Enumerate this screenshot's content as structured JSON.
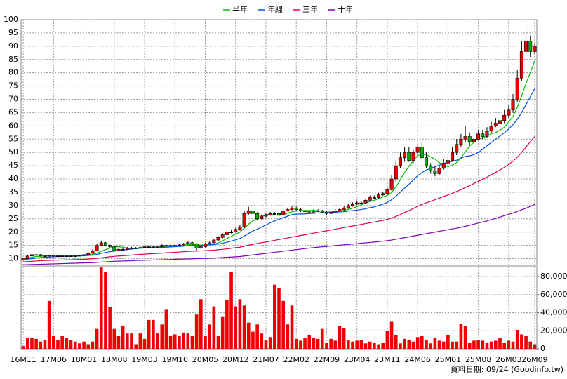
{
  "chart_data": {
    "type": "candlestick",
    "categories": [
      "16M11",
      null,
      null,
      null,
      null,
      null,
      null,
      "17M06",
      null,
      null,
      null,
      null,
      null,
      null,
      "18M01",
      null,
      null,
      null,
      null,
      null,
      null,
      "18M08",
      null,
      null,
      null,
      null,
      null,
      null,
      "19M03",
      null,
      null,
      null,
      null,
      null,
      null,
      "19M10",
      null,
      null,
      null,
      null,
      null,
      null,
      "20M05",
      null,
      null,
      null,
      null,
      null,
      null,
      "20M12",
      null,
      null,
      null,
      null,
      null,
      null,
      "21M07",
      null,
      null,
      null,
      null,
      null,
      null,
      "22M02",
      null,
      null,
      null,
      null,
      null,
      null,
      "22M09",
      null,
      null,
      null,
      null,
      null,
      null,
      "23M04",
      null,
      null,
      null,
      null,
      null,
      null,
      "23M11",
      null,
      null,
      null,
      null,
      null,
      null,
      "24M06",
      null,
      null,
      null,
      null,
      null,
      null,
      "25M01",
      null,
      null,
      null,
      null,
      null,
      null,
      "25M08",
      null,
      null,
      null,
      null,
      null,
      null,
      "26M03",
      null,
      null,
      null,
      null,
      null,
      "26M09"
    ],
    "open": [
      9.5,
      10,
      11,
      11.5,
      11.5,
      11,
      11,
      11.2,
      11,
      11,
      11,
      11,
      11,
      11,
      11.2,
      11.5,
      12,
      13,
      15,
      16,
      15,
      14.5,
      13,
      13.5,
      13.5,
      14,
      14,
      14,
      14.2,
      14.5,
      14.5,
      14.3,
      14.5,
      15,
      14.8,
      15,
      15,
      15.2,
      15.5,
      16,
      15.5,
      14,
      14.5,
      15.5,
      16,
      17,
      18,
      19,
      20,
      20,
      21,
      22,
      27,
      28,
      27,
      25,
      26,
      26.5,
      27,
      27,
      26.5,
      28,
      28.5,
      29,
      28.5,
      28,
      28,
      27.5,
      28,
      28,
      27.5,
      27,
      27.5,
      28,
      28.5,
      29,
      30,
      30.5,
      31,
      31,
      32,
      33,
      33,
      34,
      34.5,
      36,
      40,
      45,
      48,
      50,
      47,
      50,
      52,
      48,
      45,
      43,
      42,
      44,
      46,
      47,
      50,
      53,
      55,
      56,
      54,
      55,
      57,
      56,
      58,
      60,
      61,
      62,
      64,
      66,
      70,
      78,
      88,
      92,
      88
    ],
    "high": [
      10.3,
      11.4,
      11.8,
      11.8,
      11.7,
      11.3,
      11.5,
      11.4,
      11.3,
      11.3,
      11.3,
      11.3,
      11.3,
      11.5,
      11.8,
      12.4,
      13.5,
      15.5,
      16.8,
      16.2,
      15.3,
      14.8,
      13.9,
      14,
      14.4,
      14.4,
      14.4,
      14.6,
      14.8,
      14.9,
      14.8,
      14.8,
      15.4,
      15.3,
      15.3,
      15.4,
      15.5,
      15.9,
      16.5,
      16.4,
      15.8,
      14.9,
      15.9,
      16.4,
      17.5,
      18.5,
      19.6,
      20.6,
      20.7,
      21.6,
      22.8,
      28,
      29.5,
      28.8,
      27.5,
      26.6,
      27.2,
      27.6,
      27.6,
      27.4,
      28.7,
      29.2,
      30,
      29.6,
      29,
      28.6,
      28.5,
      28.6,
      28.6,
      28.4,
      27.9,
      28,
      28.6,
      29.2,
      29.7,
      30.8,
      31.2,
      31.7,
      31.8,
      32.7,
      33.8,
      33.8,
      34.8,
      35.3,
      37,
      41.5,
      47,
      50,
      52,
      52,
      51,
      53,
      54,
      50,
      46,
      44.5,
      45,
      47.5,
      48.5,
      52,
      55,
      57,
      60,
      57.5,
      56.5,
      58.5,
      58.5,
      59.5,
      61.5,
      63,
      64,
      66,
      68,
      72,
      81,
      92,
      98,
      94,
      91
    ],
    "low": [
      9.2,
      9.8,
      10.8,
      11.2,
      10.8,
      10.7,
      10.8,
      10.8,
      10.8,
      10.8,
      10.8,
      10.8,
      10.8,
      10.9,
      11,
      11.3,
      11.8,
      12.8,
      14.6,
      14.7,
      14.2,
      12.7,
      12.8,
      13.2,
      13.3,
      13.7,
      13.7,
      13.8,
      14,
      14.2,
      14.1,
      14.1,
      14.3,
      14.5,
      14.6,
      14.7,
      14.8,
      15,
      15.3,
      15.2,
      13,
      13.6,
      14.2,
      15.3,
      15.8,
      16.8,
      17.7,
      18.8,
      19.5,
      19.8,
      20.6,
      21.5,
      26.5,
      26.6,
      24.5,
      24.8,
      25.6,
      26.2,
      26.5,
      26,
      26.3,
      27.8,
      28.2,
      28,
      27.5,
      27.4,
      27.2,
      27.2,
      27.6,
      27.2,
      26.5,
      26.8,
      27.2,
      27.7,
      28.2,
      28.7,
      29.6,
      30.2,
      30.5,
      30.8,
      31.6,
      32.4,
      32.6,
      33.6,
      34,
      35.5,
      39,
      44,
      46.5,
      46.5,
      46,
      49,
      47,
      44,
      42,
      41,
      41.5,
      43.5,
      45,
      46.5,
      49,
      52,
      54,
      53,
      53.5,
      54.5,
      55,
      55.5,
      57.5,
      59.5,
      60,
      61,
      63,
      65,
      69,
      77,
      86,
      86,
      87
    ],
    "close": [
      10,
      11,
      11.5,
      11.5,
      11,
      11,
      11.2,
      11,
      11,
      11,
      11,
      11,
      11,
      11.2,
      11.5,
      12,
      13,
      15,
      16,
      15,
      14.5,
      13,
      13.5,
      13.5,
      14,
      14,
      14,
      14.2,
      14.5,
      14.5,
      14.3,
      14.5,
      15,
      14.8,
      15,
      15,
      15.2,
      15.5,
      16,
      15.5,
      14,
      14.5,
      15.5,
      16,
      17,
      18,
      19,
      20,
      20,
      21,
      22,
      27,
      28,
      27,
      25,
      26,
      26.5,
      27,
      27,
      26.5,
      28,
      28.5,
      29,
      28.5,
      28,
      28,
      27.5,
      28,
      28,
      27.5,
      27,
      27.5,
      28,
      28.5,
      29,
      30,
      30.5,
      31,
      31,
      32,
      33,
      33,
      34,
      34.5,
      36,
      40,
      45,
      48,
      50,
      47,
      50,
      52,
      48,
      45,
      43,
      42,
      44,
      46,
      47,
      50,
      53,
      55,
      56,
      54,
      55,
      57,
      56,
      58,
      60,
      61,
      62,
      64,
      66,
      70,
      78,
      88,
      92,
      88,
      90
    ],
    "up_color": "#ee0000",
    "down_color": "#00b000",
    "flat_color": "#000000",
    "series": [
      {
        "name": "半年",
        "color": "#00c000",
        "values": [
          9.8,
          10.2,
          10.5,
          10.8,
          10.9,
          11,
          11.1,
          11.2,
          11.1,
          11.1,
          11,
          11,
          11,
          11.05,
          11.1,
          11.3,
          11.6,
          12.1,
          12.8,
          13.4,
          14,
          14.4,
          14.5,
          14.3,
          14,
          13.8,
          13.8,
          13.9,
          14,
          14.1,
          14.3,
          14.3,
          14.5,
          14.6,
          14.7,
          14.8,
          14.9,
          15,
          15.3,
          15.4,
          15.2,
          15.1,
          15.2,
          15.3,
          15.5,
          15.9,
          16.7,
          17.6,
          18.4,
          19.2,
          20,
          21.5,
          23,
          24.2,
          25,
          25.8,
          26.6,
          26.6,
          26.5,
          26.3,
          26.5,
          27.2,
          27.6,
          27.9,
          28.1,
          28.2,
          28.1,
          28.2,
          28,
          27.9,
          27.9,
          27.8,
          27.7,
          27.9,
          28.1,
          28.5,
          29,
          29.6,
          30.2,
          30.9,
          31.5,
          32,
          32.6,
          33.2,
          33.8,
          35,
          37,
          39.7,
          42.5,
          44.8,
          46.8,
          48.8,
          49.3,
          49.2,
          48.3,
          47.5,
          46.2,
          45.2,
          44.6,
          45.2,
          46.2,
          48,
          50.2,
          52.4,
          53.8,
          55,
          55.5,
          56.2,
          57,
          57.5,
          58.3,
          59.5,
          61.5,
          63.5,
          67,
          71.3,
          76,
          80,
          84.5
        ]
      },
      {
        "name": "年線",
        "color": "#0050e0",
        "values": [
          9.6,
          9.8,
          10,
          10.2,
          10.4,
          10.5,
          10.6,
          10.7,
          10.8,
          10.85,
          10.9,
          10.95,
          11,
          11.05,
          11.1,
          11.2,
          11.3,
          11.6,
          12,
          12.3,
          12.6,
          12.8,
          13,
          13.2,
          13.4,
          13.6,
          13.8,
          14,
          14.1,
          14.1,
          14.1,
          14.1,
          14.2,
          14.3,
          14.4,
          14.5,
          14.6,
          14.7,
          14.9,
          15,
          14.9,
          15,
          15.1,
          15.2,
          15.3,
          15.5,
          15.8,
          16.2,
          16.6,
          17.1,
          17.6,
          18.5,
          19.5,
          20.4,
          21.1,
          21.9,
          22.7,
          23.5,
          24.2,
          24.8,
          25.4,
          26,
          26.6,
          26.8,
          26.8,
          26.9,
          27,
          27.1,
          27.2,
          27.3,
          27.3,
          27.4,
          27.5,
          27.6,
          27.7,
          27.9,
          28.1,
          28.3,
          28.5,
          28.8,
          29.2,
          29.5,
          30,
          30.5,
          31.2,
          32.2,
          33.5,
          35,
          36.6,
          38,
          39.6,
          41.2,
          42.4,
          43.4,
          44,
          44.6,
          45.2,
          45.8,
          46.3,
          46.7,
          47.1,
          47.8,
          48.5,
          48.7,
          49.2,
          50,
          51.2,
          52.5,
          53.8,
          55,
          56.2,
          57.4,
          58.8,
          60.5,
          62.5,
          65,
          68,
          71,
          74
        ]
      },
      {
        "name": "三年",
        "color": "#e0004a",
        "values": [
          8.8,
          8.9,
          9,
          9.1,
          9.2,
          9.3,
          9.35,
          9.4,
          9.45,
          9.5,
          9.55,
          9.6,
          9.65,
          9.7,
          9.75,
          9.85,
          9.95,
          10.1,
          10.3,
          10.5,
          10.7,
          10.85,
          11,
          11.1,
          11.2,
          11.35,
          11.5,
          11.6,
          11.7,
          11.8,
          11.9,
          12,
          12.1,
          12.2,
          12.3,
          12.4,
          12.5,
          12.6,
          12.7,
          12.8,
          12.85,
          12.9,
          13,
          13.1,
          13.2,
          13.35,
          13.5,
          13.7,
          13.9,
          14.1,
          14.3,
          14.7,
          15.1,
          15.4,
          15.7,
          16,
          16.3,
          16.6,
          16.9,
          17.2,
          17.5,
          17.8,
          18.1,
          18.4,
          18.7,
          19,
          19.3,
          19.6,
          19.9,
          20.2,
          20.5,
          20.8,
          21.1,
          21.4,
          21.7,
          22,
          22.3,
          22.6,
          22.9,
          23.2,
          23.5,
          23.8,
          24.1,
          24.4,
          24.8,
          25.3,
          25.9,
          26.6,
          27.4,
          28.1,
          28.9,
          29.7,
          30.4,
          31,
          31.6,
          32.2,
          32.8,
          33.4,
          34,
          34.6,
          35.3,
          36,
          36.8,
          37.5,
          38.3,
          39.1,
          39.9,
          40.7,
          41.6,
          42.5,
          43.4,
          44.4,
          45.5,
          46.7,
          48.2,
          50,
          52,
          54,
          56
        ]
      },
      {
        "name": "十年",
        "color": "#8000c0",
        "values": [
          7.7,
          7.75,
          7.8,
          7.85,
          7.9,
          7.95,
          8,
          8.05,
          8.1,
          8.15,
          8.2,
          8.25,
          8.3,
          8.35,
          8.4,
          8.45,
          8.5,
          8.6,
          8.7,
          8.8,
          8.9,
          9,
          9.05,
          9.1,
          9.15,
          9.2,
          9.3,
          9.35,
          9.4,
          9.45,
          9.5,
          9.55,
          9.6,
          9.65,
          9.7,
          9.75,
          9.8,
          9.85,
          9.9,
          9.95,
          10,
          10.05,
          10.1,
          10.15,
          10.2,
          10.3,
          10.4,
          10.5,
          10.6,
          10.7,
          10.8,
          11,
          11.2,
          11.4,
          11.6,
          11.8,
          12,
          12.2,
          12.4,
          12.6,
          12.8,
          13,
          13.2,
          13.4,
          13.6,
          13.8,
          14,
          14.15,
          14.3,
          14.45,
          14.6,
          14.75,
          14.9,
          15.05,
          15.2,
          15.35,
          15.5,
          15.65,
          15.8,
          15.95,
          16.1,
          16.25,
          16.4,
          16.6,
          16.8,
          17,
          17.3,
          17.6,
          17.9,
          18.2,
          18.5,
          18.8,
          19.1,
          19.4,
          19.7,
          20,
          20.3,
          20.6,
          20.9,
          21.2,
          21.5,
          21.8,
          22.2,
          22.6,
          23,
          23.4,
          23.8,
          24.2,
          24.7,
          25.2,
          25.7,
          26.2,
          26.7,
          27.2,
          27.8,
          28.4,
          29,
          29.7,
          30.4
        ]
      }
    ],
    "ylim": [
      7.5,
      100
    ],
    "yticks": [
      10,
      15,
      20,
      25,
      30,
      35,
      40,
      45,
      50,
      55,
      60,
      65,
      70,
      75,
      80,
      85,
      90,
      95,
      100
    ],
    "grid": true,
    "legend": "top",
    "volume": {
      "type": "bar",
      "color": "#ee0000",
      "values": [
        3000,
        12000,
        12000,
        11000,
        8000,
        10000,
        53000,
        14000,
        10000,
        14000,
        12000,
        10000,
        8000,
        6000,
        8000,
        5000,
        8000,
        22000,
        91000,
        85000,
        46000,
        22000,
        14000,
        25000,
        17000,
        17000,
        5000,
        17000,
        11000,
        32000,
        32000,
        17000,
        27000,
        44000,
        14000,
        16000,
        14000,
        18000,
        17000,
        14000,
        38000,
        55000,
        14000,
        27000,
        47000,
        14000,
        36000,
        54000,
        85000,
        47000,
        55000,
        48000,
        29000,
        19000,
        27000,
        17000,
        10000,
        13000,
        71000,
        67000,
        53000,
        27000,
        48000,
        11000,
        9000,
        12000,
        15000,
        12000,
        11000,
        22000,
        7000,
        11000,
        9000,
        25000,
        23000,
        10000,
        8000,
        9000,
        10000,
        6000,
        8000,
        7000,
        5000,
        7000,
        20000,
        30000,
        15000,
        6000,
        11000,
        10000,
        8000,
        13000,
        14000,
        10000,
        6000,
        12000,
        9000,
        8000,
        15000,
        8000,
        8000,
        28000,
        25000,
        7000,
        9000,
        10000,
        9000,
        7000,
        8000,
        9000,
        12000,
        7000,
        9000,
        8000,
        21000,
        16000,
        14000,
        8000,
        5000
      ],
      "ylim": [
        0,
        91000
      ],
      "yticks": [
        0,
        {
          "value": 20000,
          "label": "20,000"
        },
        {
          "value": 40000,
          "label": "40,000"
        },
        {
          "value": 60000,
          "label": "60,000"
        },
        {
          "value": 80000,
          "label": "80,000"
        }
      ]
    }
  },
  "footer": "資料日期: 09/24 (Goodinfo.tw)"
}
